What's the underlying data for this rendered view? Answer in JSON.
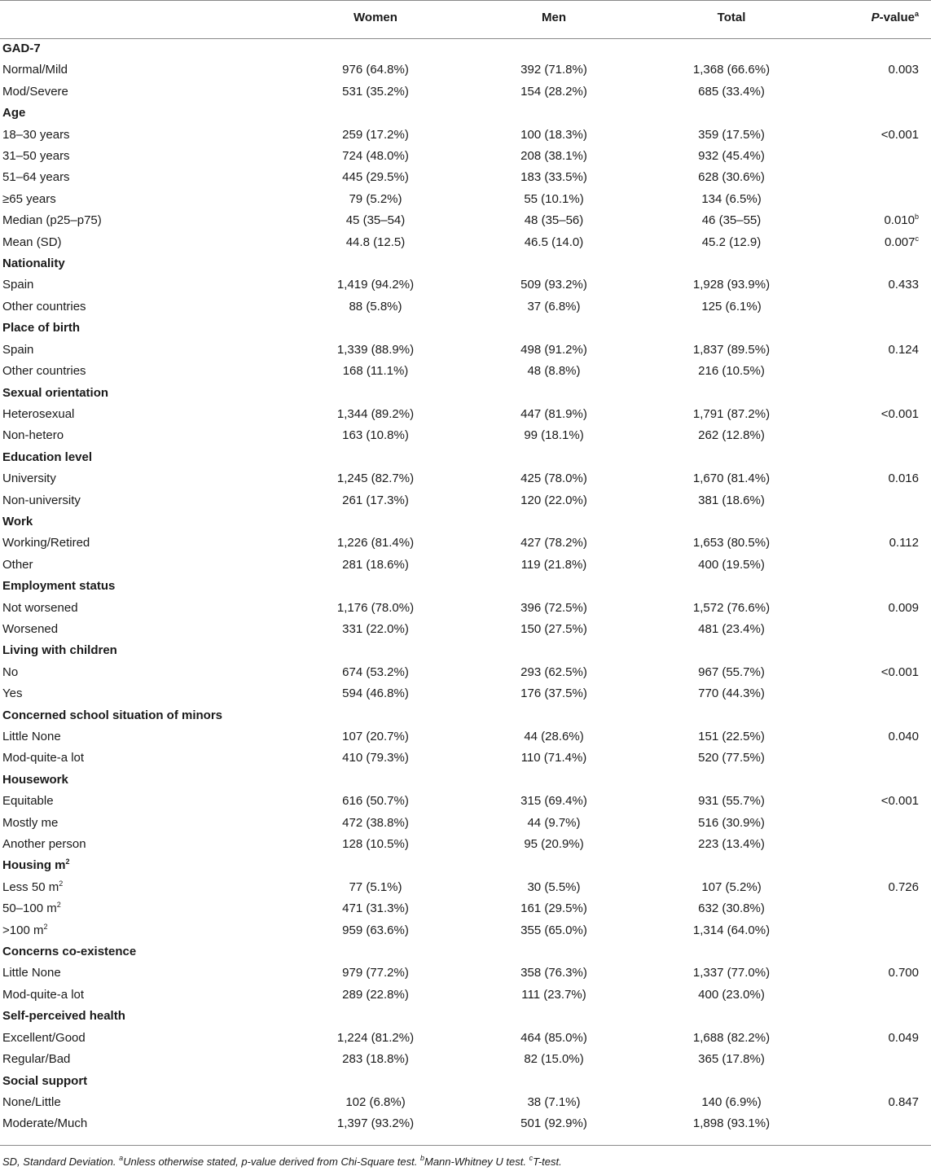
{
  "columns": {
    "women": "Women",
    "men": "Men",
    "total": "Total",
    "pvalue_italic": "P",
    "pvalue_rest": "-value",
    "pvalue_sup": "a"
  },
  "rows": [
    {
      "type": "section",
      "label": "GAD-7"
    },
    {
      "type": "data",
      "label": "Normal/Mild",
      "women": "976 (64.8%)",
      "men": "392 (71.8%)",
      "total": "1,368 (66.6%)",
      "p": "0.003"
    },
    {
      "type": "data",
      "label": "Mod/Severe",
      "women": "531 (35.2%)",
      "men": "154 (28.2%)",
      "total": "685 (33.4%)",
      "p": ""
    },
    {
      "type": "section",
      "label": "Age"
    },
    {
      "type": "data",
      "label": "18–30 years",
      "women": "259 (17.2%)",
      "men": "100 (18.3%)",
      "total": "359 (17.5%)",
      "p": "<0.001"
    },
    {
      "type": "data",
      "label": "31–50 years",
      "women": "724 (48.0%)",
      "men": "208 (38.1%)",
      "total": "932 (45.4%)",
      "p": ""
    },
    {
      "type": "data",
      "label": "51–64 years",
      "women": "445 (29.5%)",
      "men": "183 (33.5%)",
      "total": "628 (30.6%)",
      "p": ""
    },
    {
      "type": "data",
      "label": "≥65 years",
      "women": "79 (5.2%)",
      "men": "55 (10.1%)",
      "total": "134 (6.5%)",
      "p": ""
    },
    {
      "type": "data",
      "label": "Median (p25–p75)",
      "women": "45 (35–54)",
      "men": "48 (35–56)",
      "total": "46 (35–55)",
      "p": "0.010",
      "p_sup": "b"
    },
    {
      "type": "data",
      "label": "Mean (SD)",
      "women": "44.8 (12.5)",
      "men": "46.5 (14.0)",
      "total": "45.2 (12.9)",
      "p": "0.007",
      "p_sup": "c"
    },
    {
      "type": "section",
      "label": "Nationality"
    },
    {
      "type": "data",
      "label": "Spain",
      "women": "1,419 (94.2%)",
      "men": "509 (93.2%)",
      "total": "1,928 (93.9%)",
      "p": "0.433"
    },
    {
      "type": "data",
      "label": "Other countries",
      "women": "88 (5.8%)",
      "men": "37 (6.8%)",
      "total": "125 (6.1%)",
      "p": ""
    },
    {
      "type": "section",
      "label": "Place of birth"
    },
    {
      "type": "data",
      "label": "Spain",
      "women": "1,339 (88.9%)",
      "men": "498 (91.2%)",
      "total": "1,837 (89.5%)",
      "p": "0.124"
    },
    {
      "type": "data",
      "label": "Other countries",
      "women": "168 (11.1%)",
      "men": "48 (8.8%)",
      "total": "216 (10.5%)",
      "p": ""
    },
    {
      "type": "section",
      "label": "Sexual orientation"
    },
    {
      "type": "data",
      "label": "Heterosexual",
      "women": "1,344 (89.2%)",
      "men": "447 (81.9%)",
      "total": "1,791 (87.2%)",
      "p": "<0.001"
    },
    {
      "type": "data",
      "label": "Non-hetero",
      "women": "163 (10.8%)",
      "men": "99 (18.1%)",
      "total": "262 (12.8%)",
      "p": ""
    },
    {
      "type": "section",
      "label": "Education level"
    },
    {
      "type": "data",
      "label": "University",
      "women": "1,245 (82.7%)",
      "men": "425 (78.0%)",
      "total": "1,670 (81.4%)",
      "p": "0.016"
    },
    {
      "type": "data",
      "label": "Non-university",
      "women": "261 (17.3%)",
      "men": "120 (22.0%)",
      "total": "381 (18.6%)",
      "p": ""
    },
    {
      "type": "section",
      "label": "Work"
    },
    {
      "type": "data",
      "label": "Working/Retired",
      "women": "1,226 (81.4%)",
      "men": "427 (78.2%)",
      "total": "1,653 (80.5%)",
      "p": "0.112"
    },
    {
      "type": "data",
      "label": "Other",
      "women": "281 (18.6%)",
      "men": "119 (21.8%)",
      "total": "400 (19.5%)",
      "p": ""
    },
    {
      "type": "section",
      "label": "Employment status"
    },
    {
      "type": "data",
      "label": "Not worsened",
      "women": "1,176 (78.0%)",
      "men": "396 (72.5%)",
      "total": "1,572 (76.6%)",
      "p": "0.009"
    },
    {
      "type": "data",
      "label": "Worsened",
      "women": "331 (22.0%)",
      "men": "150 (27.5%)",
      "total": "481 (23.4%)",
      "p": ""
    },
    {
      "type": "section",
      "label": "Living with children"
    },
    {
      "type": "data",
      "label": "No",
      "women": "674 (53.2%)",
      "men": "293 (62.5%)",
      "total": "967 (55.7%)",
      "p": "<0.001"
    },
    {
      "type": "data",
      "label": "Yes",
      "women": "594 (46.8%)",
      "men": "176 (37.5%)",
      "total": "770 (44.3%)",
      "p": ""
    },
    {
      "type": "section",
      "label": "Concerned school situation of minors"
    },
    {
      "type": "data",
      "label": "Little None",
      "women": "107 (20.7%)",
      "men": "44 (28.6%)",
      "total": "151 (22.5%)",
      "p": "0.040"
    },
    {
      "type": "data",
      "label": "Mod-quite-a lot",
      "women": "410 (79.3%)",
      "men": "110 (71.4%)",
      "total": "520 (77.5%)",
      "p": ""
    },
    {
      "type": "section",
      "label": "Housework"
    },
    {
      "type": "data",
      "label": "Equitable",
      "women": "616 (50.7%)",
      "men": "315 (69.4%)",
      "total": "931 (55.7%)",
      "p": "<0.001"
    },
    {
      "type": "data",
      "label": "Mostly me",
      "women": "472 (38.8%)",
      "men": "44 (9.7%)",
      "total": "516 (30.9%)",
      "p": ""
    },
    {
      "type": "data",
      "label": "Another person",
      "women": "128 (10.5%)",
      "men": "95 (20.9%)",
      "total": "223 (13.4%)",
      "p": ""
    },
    {
      "type": "section",
      "label": "Housing m",
      "label_sup": "2"
    },
    {
      "type": "data",
      "label": "Less 50 m",
      "label_sup": "2",
      "women": "77 (5.1%)",
      "men": "30 (5.5%)",
      "total": "107 (5.2%)",
      "p": "0.726"
    },
    {
      "type": "data",
      "label": "50–100 m",
      "label_sup": "2",
      "women": "471 (31.3%)",
      "men": "161 (29.5%)",
      "total": "632 (30.8%)",
      "p": ""
    },
    {
      "type": "data",
      "label": ">100 m",
      "label_sup": "2",
      "women": "959 (63.6%)",
      "men": "355 (65.0%)",
      "total": "1,314 (64.0%)",
      "p": ""
    },
    {
      "type": "section",
      "label": "Concerns co-existence"
    },
    {
      "type": "data",
      "label": "Little None",
      "women": "979 (77.2%)",
      "men": "358 (76.3%)",
      "total": "1,337 (77.0%)",
      "p": "0.700"
    },
    {
      "type": "data",
      "label": "Mod-quite-a lot",
      "women": "289 (22.8%)",
      "men": "111 (23.7%)",
      "total": "400 (23.0%)",
      "p": ""
    },
    {
      "type": "section",
      "label": "Self-perceived health"
    },
    {
      "type": "data",
      "label": "Excellent/Good",
      "women": "1,224 (81.2%)",
      "men": "464 (85.0%)",
      "total": "1,688 (82.2%)",
      "p": "0.049"
    },
    {
      "type": "data",
      "label": "Regular/Bad",
      "women": "283 (18.8%)",
      "men": "82 (15.0%)",
      "total": "365 (17.8%)",
      "p": ""
    },
    {
      "type": "section",
      "label": "Social support"
    },
    {
      "type": "data",
      "label": "None/Little",
      "women": "102 (6.8%)",
      "men": "38 (7.1%)",
      "total": "140 (6.9%)",
      "p": "0.847"
    },
    {
      "type": "data",
      "label": "Moderate/Much",
      "women": "1,397 (93.2%)",
      "men": "501 (92.9%)",
      "total": "1,898 (93.1%)",
      "p": ""
    }
  ],
  "footnote": {
    "part1": "SD, Standard Deviation. ",
    "sup_a": "a",
    "part2": "Unless otherwise stated, p-value derived from Chi-Square test. ",
    "sup_b": "b",
    "part3": "Mann-Whitney U test. ",
    "sup_c": "c",
    "part4": "T-test."
  }
}
